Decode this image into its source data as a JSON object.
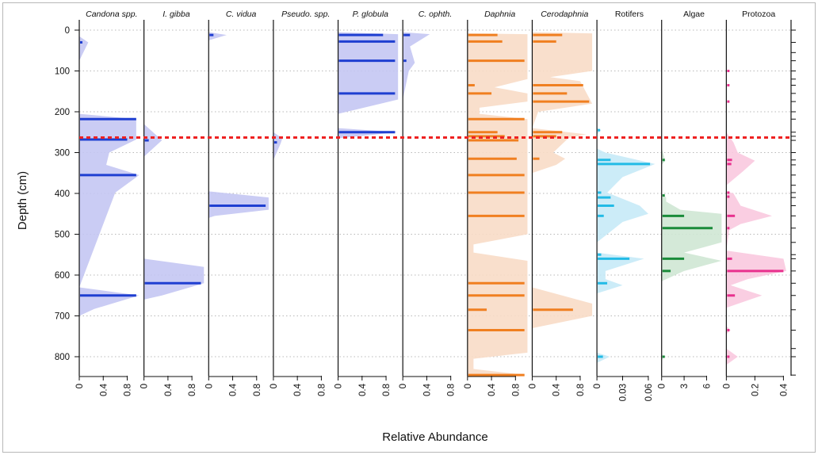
{
  "chart_data": {
    "type": "stratigraphic-area",
    "xlabel": "Relative Abundance",
    "ylabel": "Depth (cm)",
    "ylim": [
      0,
      870
    ],
    "y_ticks": [
      0,
      100,
      200,
      300,
      400,
      500,
      600,
      700,
      800
    ],
    "reference_line": {
      "depth": 263,
      "color": "#ee2222",
      "style": "dashed"
    },
    "panels": [
      {
        "name": "Candona spp.",
        "italic": true,
        "color": "#1f3fd1",
        "fill": "#c4c6f3",
        "xlim": [
          0,
          1
        ],
        "x_ticks": [
          "0",
          "0.4",
          "0.8"
        ],
        "x_tick_values": [
          0,
          0.4,
          0.8
        ],
        "bars": [
          [
            30,
            0.05
          ],
          [
            218,
            0.95
          ],
          [
            268,
            0.8
          ],
          [
            355,
            0.95
          ],
          [
            650,
            0.95
          ]
        ],
        "area": [
          [
            15,
            0
          ],
          [
            30,
            0.15
          ],
          [
            75,
            0
          ],
          [
            205,
            0
          ],
          [
            218,
            0.95
          ],
          [
            268,
            0.95
          ],
          [
            300,
            0.5
          ],
          [
            330,
            0.45
          ],
          [
            355,
            1.0
          ],
          [
            398,
            0.6
          ],
          [
            630,
            0
          ],
          [
            650,
            1.0
          ],
          [
            683,
            0.25
          ],
          [
            700,
            0
          ]
        ]
      },
      {
        "name": "I. gibba",
        "italic": true,
        "color": "#1f3fd1",
        "fill": "#c4c6f3",
        "xlim": [
          0,
          1
        ],
        "x_ticks": [
          "0",
          "0.4",
          "0.8"
        ],
        "x_tick_values": [
          0,
          0.4,
          0.8
        ],
        "bars": [
          [
            270,
            0.08
          ],
          [
            620,
            0.95
          ]
        ],
        "area": [
          [
            230,
            0
          ],
          [
            270,
            0.3
          ],
          [
            310,
            0
          ],
          [
            560,
            0
          ],
          [
            580,
            1.0
          ],
          [
            620,
            1.0
          ],
          [
            650,
            0.3
          ],
          [
            660,
            0
          ]
        ]
      },
      {
        "name": "C. vidua",
        "italic": true,
        "color": "#1f3fd1",
        "fill": "#c4c6f3",
        "xlim": [
          0,
          1
        ],
        "x_ticks": [
          "0",
          "0.4",
          "0.8"
        ],
        "x_tick_values": [
          0,
          0.4,
          0.8
        ],
        "bars": [
          [
            12,
            0.08
          ],
          [
            430,
            0.95
          ]
        ],
        "area": [
          [
            5,
            0
          ],
          [
            12,
            0.3
          ],
          [
            25,
            0
          ],
          [
            395,
            0
          ],
          [
            410,
            1.0
          ],
          [
            440,
            1.0
          ],
          [
            455,
            0.1
          ],
          [
            460,
            0
          ]
        ]
      },
      {
        "name": "Pseudo. spp.",
        "italic": true,
        "color": "#1f3fd1",
        "fill": "#c4c6f3",
        "xlim": [
          0,
          1
        ],
        "x_ticks": [
          "0",
          "0.4",
          "0.8"
        ],
        "x_tick_values": [
          0,
          0.4,
          0.8
        ],
        "bars": [
          [
            275,
            0.06
          ]
        ],
        "area": [
          [
            250,
            0
          ],
          [
            265,
            0.15
          ],
          [
            278,
            0.12
          ],
          [
            318,
            0
          ]
        ]
      },
      {
        "name": "P. globula",
        "italic": true,
        "color": "#1f3fd1",
        "fill": "#c4c6f3",
        "xlim": [
          0,
          1
        ],
        "x_ticks": [
          "0",
          "0.4",
          "0.8"
        ],
        "x_tick_values": [
          0,
          0.4,
          0.8
        ],
        "bars": [
          [
            12,
            0.75
          ],
          [
            28,
            0.95
          ],
          [
            75,
            0.95
          ],
          [
            155,
            0.95
          ],
          [
            250,
            0.95
          ]
        ],
        "area": [
          [
            5,
            0
          ],
          [
            10,
            1.0
          ],
          [
            170,
            1.0
          ],
          [
            205,
            0
          ],
          [
            240,
            0
          ],
          [
            250,
            1.0
          ],
          [
            265,
            0
          ]
        ]
      },
      {
        "name": "C. ophth.",
        "italic": true,
        "color": "#1f3fd1",
        "fill": "#c4c6f3",
        "xlim": [
          0,
          1
        ],
        "x_ticks": [
          "0",
          "0.4",
          "0.8"
        ],
        "x_tick_values": [
          0,
          0.4,
          0.8
        ],
        "bars": [
          [
            12,
            0.12
          ],
          [
            75,
            0.06
          ]
        ],
        "area": [
          [
            5,
            0
          ],
          [
            10,
            0.45
          ],
          [
            40,
            0.12
          ],
          [
            80,
            0.2
          ],
          [
            100,
            0.1
          ],
          [
            170,
            0
          ]
        ]
      },
      {
        "name": "Daphnia",
        "italic": true,
        "color": "#f07f20",
        "fill": "#f8dcc6",
        "xlim": [
          0,
          1
        ],
        "x_ticks": [
          "0",
          "0.4",
          "0.8"
        ],
        "x_tick_values": [
          0,
          0.4,
          0.8
        ],
        "bars": [
          [
            12,
            0.5
          ],
          [
            28,
            0.58
          ],
          [
            75,
            0.95
          ],
          [
            135,
            0.12
          ],
          [
            155,
            0.4
          ],
          [
            218,
            0.95
          ],
          [
            250,
            0.5
          ],
          [
            260,
            0.62
          ],
          [
            270,
            0.85
          ],
          [
            315,
            0.82
          ],
          [
            355,
            0.95
          ],
          [
            398,
            0.95
          ],
          [
            455,
            0.95
          ],
          [
            620,
            0.95
          ],
          [
            650,
            0.95
          ],
          [
            685,
            0.32
          ],
          [
            735,
            0.95
          ],
          [
            845,
            0.95
          ]
        ],
        "area": [
          [
            8,
            0
          ],
          [
            10,
            1.0
          ],
          [
            120,
            1.0
          ],
          [
            140,
            0.45
          ],
          [
            155,
            1.0
          ],
          [
            175,
            1.0
          ],
          [
            190,
            0.2
          ],
          [
            205,
            0.2
          ],
          [
            218,
            1.0
          ],
          [
            500,
            1.0
          ],
          [
            525,
            0.1
          ],
          [
            545,
            0.1
          ],
          [
            565,
            1.0
          ],
          [
            790,
            1.0
          ],
          [
            805,
            0.1
          ],
          [
            830,
            0.1
          ],
          [
            845,
            1.0
          ],
          [
            850,
            0
          ]
        ]
      },
      {
        "name": "Cerodaphnia",
        "italic": true,
        "color": "#f07f20",
        "fill": "#f8dcc6",
        "xlim": [
          0,
          1
        ],
        "x_ticks": [
          "0",
          "0.4",
          "0.8"
        ],
        "x_tick_values": [
          0,
          0.4,
          0.8
        ],
        "bars": [
          [
            12,
            0.5
          ],
          [
            28,
            0.4
          ],
          [
            135,
            0.85
          ],
          [
            155,
            0.58
          ],
          [
            175,
            0.95
          ],
          [
            250,
            0.5
          ],
          [
            260,
            0.4
          ],
          [
            315,
            0.12
          ],
          [
            685,
            0.68
          ]
        ],
        "area": [
          [
            5,
            0
          ],
          [
            8,
            1.0
          ],
          [
            100,
            1.0
          ],
          [
            115,
            0.3
          ],
          [
            125,
            0.8
          ],
          [
            180,
            1.0
          ],
          [
            200,
            0.1
          ],
          [
            240,
            0
          ],
          [
            255,
            0.9
          ],
          [
            265,
            0.6
          ],
          [
            300,
            0.35
          ],
          [
            315,
            0.55
          ],
          [
            330,
            0.4
          ],
          [
            350,
            0
          ],
          [
            630,
            0
          ],
          [
            670,
            1.0
          ],
          [
            700,
            1.0
          ],
          [
            730,
            0
          ]
        ]
      },
      {
        "name": "Rotifers",
        "italic": false,
        "color": "#22bbe6",
        "fill": "#c6eaf7",
        "xlim": [
          0,
          0.07
        ],
        "x_ticks": [
          "0",
          "0.03",
          "0.06"
        ],
        "x_tick_values": [
          0,
          0.03,
          0.06
        ],
        "bars": [
          [
            245,
            0.003
          ],
          [
            318,
            0.016
          ],
          [
            328,
            0.062
          ],
          [
            398,
            0.005
          ],
          [
            410,
            0.016
          ],
          [
            430,
            0.02
          ],
          [
            455,
            0.008
          ],
          [
            550,
            0.005
          ],
          [
            560,
            0.038
          ],
          [
            620,
            0.012
          ],
          [
            800,
            0.007
          ]
        ],
        "area": [
          [
            240,
            0
          ],
          [
            245,
            0.005
          ],
          [
            255,
            0
          ],
          [
            290,
            0
          ],
          [
            300,
            0.01
          ],
          [
            328,
            0.068
          ],
          [
            360,
            0.03
          ],
          [
            398,
            0.012
          ],
          [
            430,
            0.05
          ],
          [
            450,
            0.06
          ],
          [
            470,
            0.03
          ],
          [
            520,
            0
          ],
          [
            545,
            0
          ],
          [
            560,
            0.055
          ],
          [
            590,
            0.01
          ],
          [
            610,
            0.01
          ],
          [
            625,
            0.03
          ],
          [
            645,
            0
          ],
          [
            790,
            0
          ],
          [
            800,
            0.015
          ],
          [
            815,
            0
          ]
        ]
      },
      {
        "name": "Algae",
        "italic": false,
        "color": "#1a8b3a",
        "fill": "#cfe7d4",
        "xlim": [
          0,
          8
        ],
        "x_ticks": [
          "0",
          "3",
          "6"
        ],
        "x_tick_values": [
          0,
          3,
          6
        ],
        "bars": [
          [
            318,
            0.3
          ],
          [
            405,
            0.4
          ],
          [
            455,
            3.0
          ],
          [
            485,
            6.8
          ],
          [
            560,
            3.0
          ],
          [
            590,
            1.2
          ],
          [
            800,
            0.3
          ]
        ],
        "area": [
          [
            290,
            0
          ],
          [
            320,
            0.5
          ],
          [
            330,
            0
          ],
          [
            400,
            0
          ],
          [
            410,
            0.6
          ],
          [
            420,
            0.6
          ],
          [
            440,
            2.5
          ],
          [
            450,
            8.0
          ],
          [
            520,
            8.0
          ],
          [
            545,
            3.0
          ],
          [
            565,
            8.0
          ],
          [
            590,
            3.0
          ],
          [
            615,
            0
          ],
          [
            795,
            0
          ],
          [
            800,
            0.3
          ],
          [
            810,
            0
          ]
        ]
      },
      {
        "name": "Protozoa",
        "italic": false,
        "color": "#e8318e",
        "fill": "#f9c9df",
        "xlim": [
          0,
          0.42
        ],
        "x_ticks": [
          "0",
          "0.2",
          "0.4"
        ],
        "x_tick_values": [
          0,
          0.2,
          0.4
        ],
        "bars": [
          [
            100,
            0.003
          ],
          [
            135,
            0.003
          ],
          [
            175,
            0.003
          ],
          [
            318,
            0.04
          ],
          [
            328,
            0.035
          ],
          [
            398,
            0.02
          ],
          [
            408,
            0.015
          ],
          [
            455,
            0.06
          ],
          [
            485,
            0.02
          ],
          [
            560,
            0.04
          ],
          [
            590,
            0.4
          ],
          [
            650,
            0.06
          ],
          [
            735,
            0.015
          ],
          [
            800,
            0.02
          ]
        ],
        "area": [
          [
            250,
            0
          ],
          [
            275,
            0.05
          ],
          [
            300,
            0.08
          ],
          [
            320,
            0.2
          ],
          [
            345,
            0.12
          ],
          [
            380,
            0
          ],
          [
            395,
            0
          ],
          [
            400,
            0.05
          ],
          [
            430,
            0.1
          ],
          [
            455,
            0.32
          ],
          [
            475,
            0.1
          ],
          [
            490,
            0.02
          ],
          [
            540,
            0
          ],
          [
            560,
            0.4
          ],
          [
            590,
            0.42
          ],
          [
            610,
            0.15
          ],
          [
            625,
            0.03
          ],
          [
            650,
            0.25
          ],
          [
            680,
            0
          ],
          [
            725,
            0
          ],
          [
            735,
            0.03
          ],
          [
            745,
            0
          ],
          [
            780,
            0
          ],
          [
            800,
            0.08
          ],
          [
            820,
            0
          ]
        ]
      }
    ]
  }
}
